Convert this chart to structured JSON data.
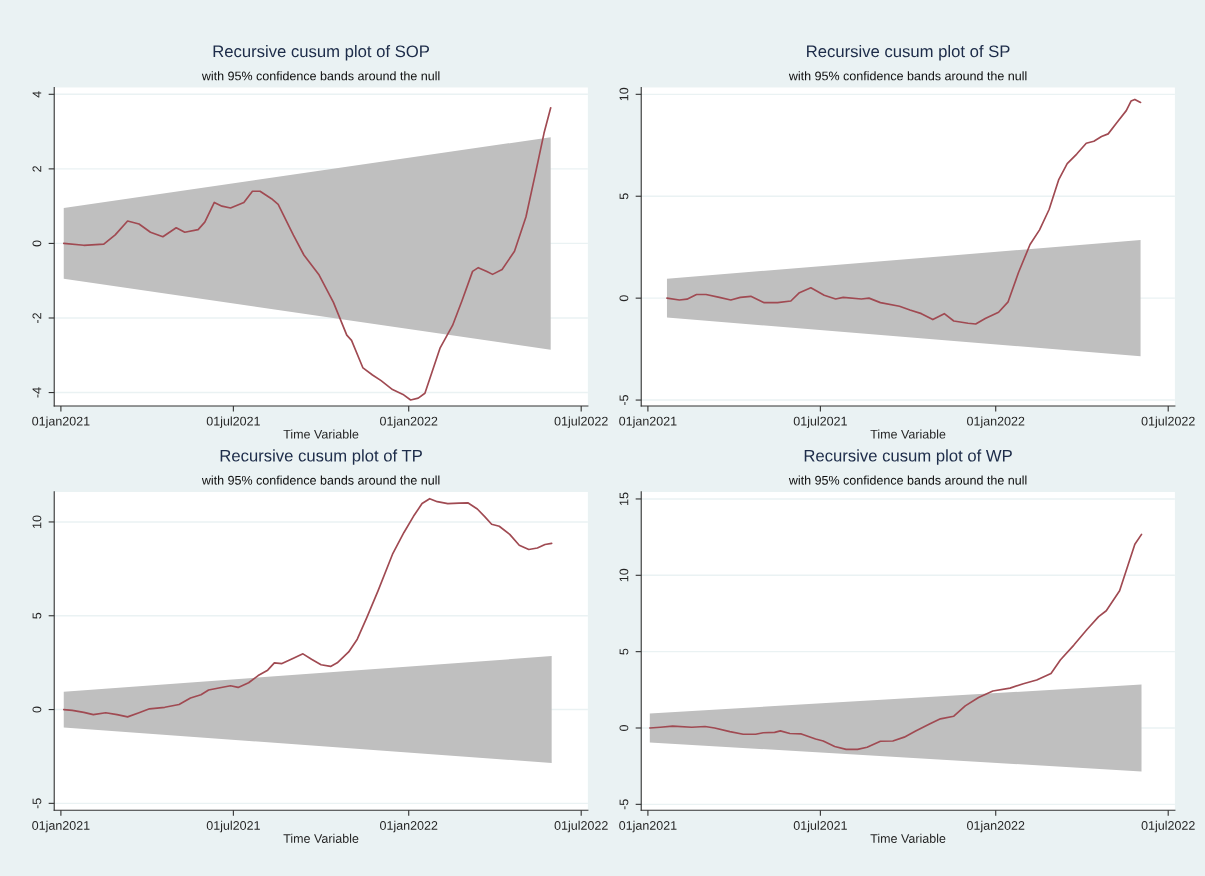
{
  "chart_data": [
    {
      "type": "line",
      "title": "Recursive cusum plot of SOP",
      "subtitle": "with 95% confidence bands around the null",
      "xlabel": "Time Variable",
      "xlim": [
        "2020-12-25",
        "2022-07-08"
      ],
      "xticks": [
        {
          "value": "2021-01-01",
          "label": "01jan2021"
        },
        {
          "value": "2021-07-01",
          "label": "01jul2021"
        },
        {
          "value": "2022-01-01",
          "label": "01jan2022"
        },
        {
          "value": "2022-07-01",
          "label": "01jul2022"
        }
      ],
      "ylim": [
        -4.36,
        4.18
      ],
      "yticks": [
        -4,
        -2,
        0,
        2,
        4
      ],
      "grid": "y",
      "series": [
        {
          "type": "area",
          "color": "#bfbfbf",
          "x": [
            "2021-01-04",
            "2022-05-30",
            "2022-05-30",
            "2021-01-04"
          ],
          "values": [
            0.95,
            2.85,
            -2.85,
            -0.95
          ]
        },
        {
          "color": "#a04a52",
          "x": [
            "2021-01-04",
            "2021-01-25",
            "2021-02-15",
            "2021-02-27",
            "2021-03-12",
            "2021-03-24",
            "2021-04-05",
            "2021-04-18",
            "2021-05-02",
            "2021-05-11",
            "2021-05-25",
            "2021-06-01",
            "2021-06-11",
            "2021-06-19",
            "2021-06-28",
            "2021-07-12",
            "2021-07-21",
            "2021-07-29",
            "2021-08-10",
            "2021-08-17",
            "2021-09-02",
            "2021-09-13",
            "2021-09-29",
            "2021-10-14",
            "2021-10-28",
            "2021-11-02",
            "2021-11-14",
            "2021-11-24",
            "2021-12-03",
            "2021-12-15",
            "2021-12-26",
            "2022-01-03",
            "2022-01-11",
            "2022-01-18",
            "2022-02-03",
            "2022-02-16",
            "2022-02-26",
            "2022-03-09",
            "2022-03-15",
            "2022-03-24",
            "2022-03-30",
            "2022-04-09",
            "2022-04-22",
            "2022-05-04",
            "2022-05-14",
            "2022-05-23",
            "2022-05-30"
          ],
          "values": [
            0,
            -0.05,
            -0.02,
            0.23,
            0.6,
            0.52,
            0.3,
            0.18,
            0.42,
            0.3,
            0.37,
            0.57,
            1.1,
            1.0,
            0.95,
            1.1,
            1.4,
            1.4,
            1.2,
            1.05,
            0.22,
            -0.31,
            -0.85,
            -1.58,
            -2.46,
            -2.6,
            -3.34,
            -3.53,
            -3.68,
            -3.92,
            -4.05,
            -4.2,
            -4.15,
            -4.02,
            -2.8,
            -2.2,
            -1.53,
            -0.75,
            -0.65,
            -0.75,
            -0.83,
            -0.7,
            -0.21,
            0.71,
            1.88,
            2.96,
            3.64
          ]
        }
      ]
    },
    {
      "type": "line",
      "title": "Recursive cusum plot of SP",
      "subtitle": "with 95% confidence bands around the null",
      "xlabel": "Time Variable",
      "xlim": [
        "2020-12-25",
        "2022-07-08"
      ],
      "xticks": [
        {
          "value": "2021-01-01",
          "label": "01jan2021"
        },
        {
          "value": "2021-07-01",
          "label": "01jul2021"
        },
        {
          "value": "2022-01-01",
          "label": "01jan2022"
        },
        {
          "value": "2022-07-01",
          "label": "01jul2022"
        }
      ],
      "ylim": [
        -5.29,
        10.33
      ],
      "yticks": [
        -5,
        0,
        5,
        10
      ],
      "grid": "y",
      "series": [
        {
          "type": "area",
          "color": "#bfbfbf",
          "x": [
            "2021-01-21",
            "2022-06-02",
            "2022-06-02",
            "2021-01-21"
          ],
          "values": [
            0.95,
            2.85,
            -2.85,
            -0.95
          ]
        },
        {
          "color": "#a04a52",
          "x": [
            "2021-01-21",
            "2021-02-03",
            "2021-02-11",
            "2021-02-21",
            "2021-03-03",
            "2021-03-17",
            "2021-03-29",
            "2021-04-08",
            "2021-04-19",
            "2021-05-03",
            "2021-05-17",
            "2021-05-31",
            "2021-06-09",
            "2021-06-21",
            "2021-07-05",
            "2021-07-17",
            "2021-07-25",
            "2021-08-13",
            "2021-08-21",
            "2021-09-02",
            "2021-09-22",
            "2021-10-03",
            "2021-10-15",
            "2021-10-27",
            "2021-11-08",
            "2021-11-18",
            "2021-12-03",
            "2021-12-11",
            "2021-12-21",
            "2022-01-04",
            "2022-01-14",
            "2022-01-25",
            "2022-02-06",
            "2022-02-16",
            "2022-02-26",
            "2022-03-08",
            "2022-03-17",
            "2022-03-27",
            "2022-04-06",
            "2022-04-14",
            "2022-04-22",
            "2022-04-29",
            "2022-05-08",
            "2022-05-18",
            "2022-05-23",
            "2022-05-27",
            "2022-06-02"
          ],
          "values": [
            0,
            -0.09,
            -0.05,
            0.18,
            0.18,
            0.04,
            -0.09,
            0.04,
            0.09,
            -0.22,
            -0.22,
            -0.14,
            0.27,
            0.51,
            0.14,
            -0.04,
            0.04,
            -0.04,
            0,
            -0.22,
            -0.4,
            -0.58,
            -0.76,
            -1.05,
            -0.76,
            -1.12,
            -1.23,
            -1.27,
            -1.0,
            -0.69,
            -0.18,
            1.27,
            2.63,
            3.35,
            4.35,
            5.8,
            6.6,
            7.07,
            7.6,
            7.7,
            7.93,
            8.06,
            8.6,
            9.2,
            9.67,
            9.75,
            9.6
          ]
        }
      ]
    },
    {
      "type": "line",
      "title": "Recursive cusum plot of TP",
      "subtitle": "with 95% confidence bands around the null",
      "xlabel": "Time Variable",
      "xlim": [
        "2020-12-25",
        "2022-07-08"
      ],
      "xticks": [
        {
          "value": "2021-01-01",
          "label": "01jan2021"
        },
        {
          "value": "2021-07-01",
          "label": "01jul2021"
        },
        {
          "value": "2022-01-01",
          "label": "01jan2022"
        },
        {
          "value": "2022-07-01",
          "label": "01jul2022"
        }
      ],
      "ylim": [
        -5.37,
        11.6
      ],
      "yticks": [
        -5,
        0,
        5,
        10
      ],
      "grid": "y",
      "series": [
        {
          "type": "area",
          "color": "#bfbfbf",
          "x": [
            "2021-01-04",
            "2022-05-31",
            "2022-05-31",
            "2021-01-04"
          ],
          "values": [
            0.95,
            2.85,
            -2.85,
            -0.95
          ]
        },
        {
          "color": "#a04a52",
          "x": [
            "2021-01-04",
            "2021-01-13",
            "2021-01-25",
            "2021-02-04",
            "2021-02-17",
            "2021-03-01",
            "2021-03-12",
            "2021-03-24",
            "2021-04-04",
            "2021-04-20",
            "2021-05-05",
            "2021-05-17",
            "2021-05-28",
            "2021-06-05",
            "2021-06-17",
            "2021-06-28",
            "2021-07-06",
            "2021-07-17",
            "2021-07-27",
            "2021-08-06",
            "2021-08-13",
            "2021-08-21",
            "2021-09-02",
            "2021-09-12",
            "2021-09-21",
            "2021-10-01",
            "2021-10-11",
            "2021-10-18",
            "2021-10-30",
            "2021-11-08",
            "2021-11-18",
            "2021-11-30",
            "2021-12-15",
            "2021-12-27",
            "2022-01-06",
            "2022-01-15",
            "2022-01-23",
            "2022-01-31",
            "2022-02-11",
            "2022-02-23",
            "2022-03-04",
            "2022-03-14",
            "2022-03-22",
            "2022-03-29",
            "2022-04-06",
            "2022-04-17",
            "2022-04-27",
            "2022-05-07",
            "2022-05-16",
            "2022-05-24",
            "2022-05-31"
          ],
          "values": [
            0,
            -0.04,
            -0.15,
            -0.27,
            -0.17,
            -0.27,
            -0.39,
            -0.17,
            0.04,
            0.12,
            0.27,
            0.62,
            0.79,
            1.04,
            1.16,
            1.27,
            1.18,
            1.43,
            1.81,
            2.1,
            2.49,
            2.45,
            2.74,
            2.97,
            2.68,
            2.39,
            2.3,
            2.49,
            3.07,
            3.75,
            4.9,
            6.35,
            8.28,
            9.44,
            10.3,
            10.98,
            11.24,
            11.08,
            10.98,
            11.0,
            11.02,
            10.69,
            10.27,
            9.88,
            9.77,
            9.34,
            8.76,
            8.53,
            8.61,
            8.8,
            8.86
          ]
        }
      ]
    },
    {
      "type": "line",
      "title": "Recursive cusum plot of WP",
      "subtitle": "with 95% confidence bands around the null",
      "xlabel": "Time Variable",
      "xlim": [
        "2020-12-25",
        "2022-07-08"
      ],
      "xticks": [
        {
          "value": "2021-01-01",
          "label": "01jan2021"
        },
        {
          "value": "2021-07-01",
          "label": "01jul2021"
        },
        {
          "value": "2022-01-01",
          "label": "01jan2022"
        },
        {
          "value": "2022-07-01",
          "label": "01jul2022"
        }
      ],
      "ylim": [
        -5.39,
        15.46
      ],
      "yticks": [
        -5,
        0,
        5,
        10,
        15
      ],
      "grid": "y",
      "series": [
        {
          "type": "area",
          "color": "#bfbfbf",
          "x": [
            "2021-01-03",
            "2022-06-03",
            "2022-06-03",
            "2021-01-03"
          ],
          "values": [
            0.95,
            2.85,
            -2.85,
            -0.95
          ]
        },
        {
          "color": "#a04a52",
          "x": [
            "2021-01-03",
            "2021-01-14",
            "2021-01-27",
            "2021-02-16",
            "2021-03-02",
            "2021-03-12",
            "2021-03-28",
            "2021-04-11",
            "2021-04-24",
            "2021-05-02",
            "2021-05-14",
            "2021-05-20",
            "2021-05-30",
            "2021-06-11",
            "2021-06-26",
            "2021-07-04",
            "2021-07-16",
            "2021-07-28",
            "2021-08-09",
            "2021-08-19",
            "2021-09-02",
            "2021-09-15",
            "2021-09-27",
            "2021-10-09",
            "2021-10-23",
            "2021-11-04",
            "2021-11-18",
            "2021-11-30",
            "2021-12-14",
            "2021-12-29",
            "2022-01-16",
            "2022-01-30",
            "2022-02-13",
            "2022-02-28",
            "2022-03-10",
            "2022-03-24",
            "2022-04-07",
            "2022-04-19",
            "2022-04-27",
            "2022-05-11",
            "2022-05-19",
            "2022-05-27",
            "2022-06-03"
          ],
          "values": [
            0,
            0.05,
            0.12,
            0.05,
            0.1,
            0,
            -0.24,
            -0.41,
            -0.41,
            -0.31,
            -0.29,
            -0.19,
            -0.36,
            -0.39,
            -0.72,
            -0.85,
            -1.21,
            -1.4,
            -1.4,
            -1.26,
            -0.87,
            -0.85,
            -0.6,
            -0.19,
            0.24,
            0.6,
            0.77,
            1.45,
            2.0,
            2.42,
            2.61,
            2.9,
            3.14,
            3.57,
            4.47,
            5.43,
            6.47,
            7.29,
            7.68,
            8.99,
            10.51,
            12.03,
            12.68
          ]
        }
      ]
    }
  ]
}
